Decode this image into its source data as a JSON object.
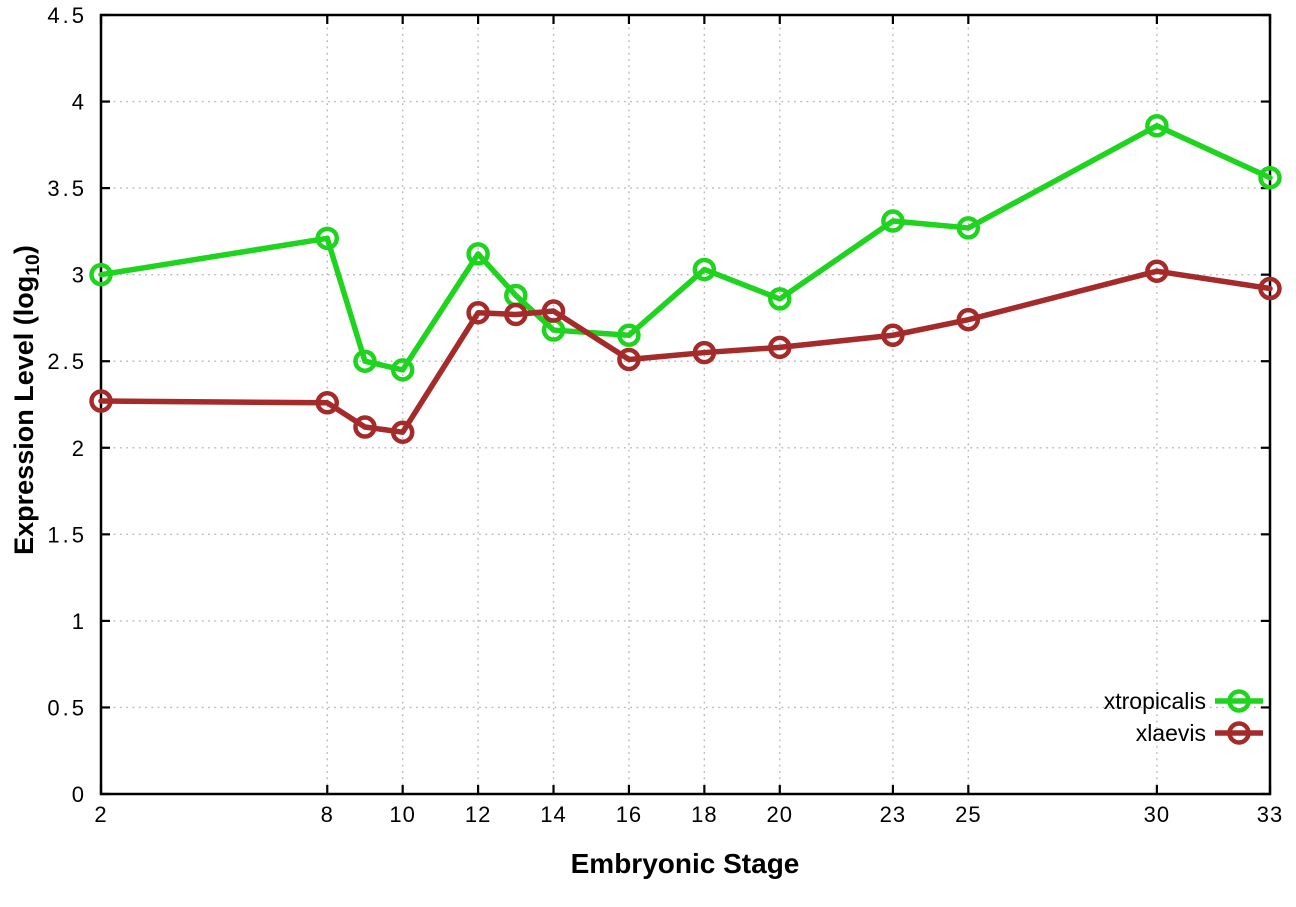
{
  "chart": {
    "xlabel": "Embryonic Stage",
    "ylabel_prefix": "Expression Level (log",
    "ylabel_sub": "10",
    "ylabel_suffix": ")"
  },
  "chart_data": {
    "type": "line",
    "x": [
      2,
      8,
      9,
      10,
      12,
      13,
      14,
      16,
      18,
      20,
      23,
      25,
      30,
      33
    ],
    "series": [
      {
        "name": "xtropicalis",
        "color": "#1ed41e",
        "values": [
          3.0,
          3.21,
          2.5,
          2.45,
          3.12,
          2.88,
          2.68,
          2.65,
          3.03,
          2.86,
          3.31,
          3.27,
          3.86,
          3.56
        ]
      },
      {
        "name": "xlaevis",
        "color": "#a52a2a",
        "values": [
          2.27,
          2.26,
          2.12,
          2.09,
          2.78,
          2.77,
          2.79,
          2.51,
          2.55,
          2.58,
          2.65,
          2.74,
          3.02,
          2.92
        ]
      }
    ],
    "title": "",
    "xlabel": "Embryonic Stage",
    "ylabel": "Expression Level (log10)",
    "xlim": [
      2,
      33
    ],
    "ylim": [
      0,
      4.5
    ],
    "x_tick_labels": [
      2,
      8,
      10,
      12,
      14,
      16,
      18,
      20,
      23,
      25,
      30,
      33
    ],
    "y_ticks": [
      0,
      0.5,
      1,
      1.5,
      2,
      2.5,
      3,
      3.5,
      4,
      4.5
    ],
    "grid": true,
    "grid_style": "dotted",
    "legend_position": "bottom-right",
    "marker": "open-circle",
    "colors": {
      "axis": "#000000",
      "grid": "#b8b8b8",
      "background": "#ffffff",
      "text": "#000000"
    }
  }
}
